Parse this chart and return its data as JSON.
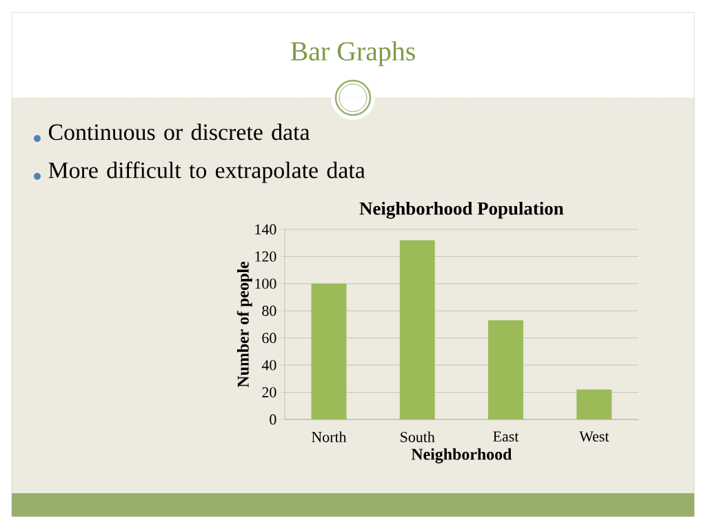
{
  "chart_data": {
    "type": "bar",
    "title": "Neighborhood Population",
    "xlabel": "Neighborhood",
    "ylabel": "Number of people",
    "annotations": [
      "Bar Graphs",
      "Continuous or discrete data",
      "More difficult to extrapolate data"
    ],
    "categories": [
      "North",
      "South",
      "East",
      "West"
    ],
    "values": [
      100,
      132,
      73,
      22
    ],
    "color": "#9bbb59",
    "ylim": [
      0,
      140
    ],
    "yticks": [
      0,
      20,
      40,
      60,
      80,
      100,
      120,
      140
    ],
    "grid": "y"
  }
}
